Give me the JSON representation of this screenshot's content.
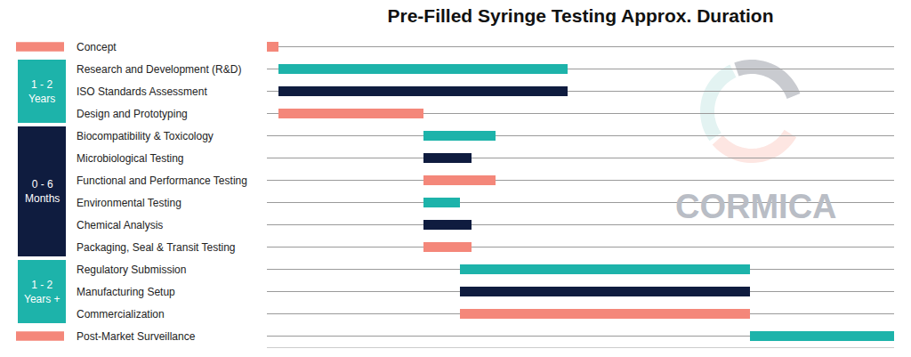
{
  "chart_data": {
    "type": "gantt",
    "orientation": "horizontal",
    "title": "Pre-Filled Syringe Testing Approx. Duration",
    "categories": [
      "Concept",
      "Research and Development (R&D)",
      "ISO Standards Assessment",
      "Design and Prototyping",
      "Biocompatibility & Toxicology",
      "Microbiological Testing",
      "Functional and Performance Testing",
      "Environmental Testing",
      "Chemical Analysis",
      "Packaging, Seal & Transit Testing",
      "Regulatory Submission",
      "Manufacturing Setup",
      "Commercialization",
      "Post-Market Surveillance"
    ],
    "start": [
      0,
      1.8,
      1.8,
      1.8,
      25.0,
      25.0,
      25.0,
      25.0,
      25.0,
      25.0,
      30.8,
      30.8,
      30.8,
      77.0
    ],
    "end": [
      1.8,
      47.9,
      47.9,
      25.0,
      36.5,
      32.6,
      36.5,
      30.8,
      32.6,
      32.6,
      77.0,
      77.0,
      77.0,
      100
    ],
    "colors": [
      "#f4877a",
      "#1db3aa",
      "#0f1c3f",
      "#f4877a",
      "#1db3aa",
      "#0f1c3f",
      "#f4877a",
      "#1db3aa",
      "#0f1c3f",
      "#f4877a",
      "#1db3aa",
      "#0f1c3f",
      "#f4877a",
      "#1db3aa"
    ],
    "groups": [
      {
        "label": "1 - 2 Years",
        "first": "Research and Development (R&D)",
        "last": "Design and Prototyping",
        "color": "#1db3aa"
      },
      {
        "label": "0 - 6 Months",
        "first": "Biocompatibility & Toxicology",
        "last": "Packaging, Seal & Transit Testing",
        "color": "#0f1c3f"
      },
      {
        "label": "1 - 2 Years +",
        "first": "Regulatory Submission",
        "last": "Commercialization",
        "color": "#1db3aa"
      }
    ],
    "annotations": [
      "CORMICA"
    ],
    "xlim": [
      0,
      100
    ],
    "xticks": [],
    "tick_labels": false,
    "grid": true
  }
}
